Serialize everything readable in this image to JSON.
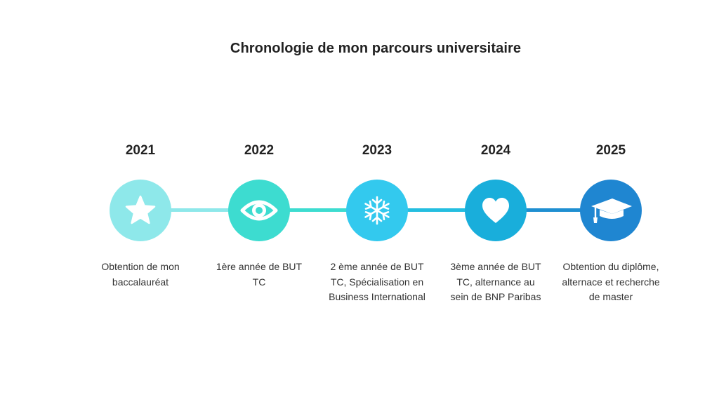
{
  "title": "Chronologie de mon parcours universitaire",
  "steps": [
    {
      "year": "2021",
      "icon": "star-icon",
      "color": "#8EE8EA",
      "text": "Obtention de mon baccalauréat"
    },
    {
      "year": "2022",
      "icon": "eye-icon",
      "color": "#3DDCD0",
      "text": "1ère année de BUT TC"
    },
    {
      "year": "2023",
      "icon": "snowflake-icon",
      "color": "#33C9EE",
      "text": "2 ème année de BUT TC, Spécialisation en Business International"
    },
    {
      "year": "2024",
      "icon": "heart-icon",
      "color": "#19AEDB",
      "text": "3ème année de BUT TC, alternance au sein de BNP Paribas"
    },
    {
      "year": "2025",
      "icon": "graduation-cap-icon",
      "color": "#1F86D1",
      "text": "Obtention du diplôme, alternace et recherche de master"
    }
  ],
  "connector_colors": [
    "#8EE8EA",
    "#3DDCD0",
    "#24BEE0",
    "#1F8FD1"
  ]
}
